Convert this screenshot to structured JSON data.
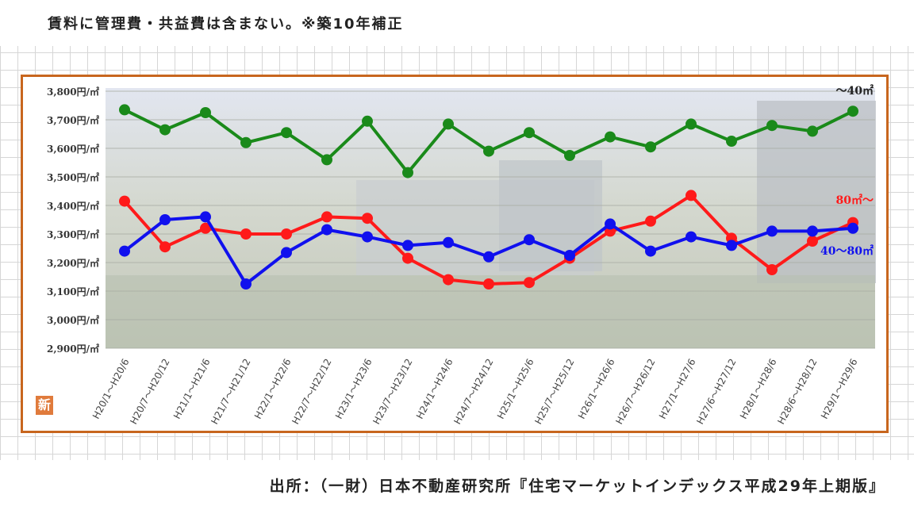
{
  "header": {
    "note": "賃料に管理費・共益費は含まない。※築10年補正"
  },
  "footer": {
    "source": "出所：（一財）日本不動産研究所『住宅マーケットインデックス平成29年上期版』"
  },
  "badge": {
    "label": "新"
  },
  "chart_data": {
    "type": "line",
    "title": "",
    "xlabel": "",
    "ylabel": "",
    "ylim": [
      2900,
      3800
    ],
    "yticks": [
      2900,
      3000,
      3100,
      3200,
      3300,
      3400,
      3500,
      3600,
      3700,
      3800
    ],
    "ytick_labels": [
      "2,900円/㎡",
      "3,000円/㎡",
      "3,100円/㎡",
      "3,200円/㎡",
      "3,300円/㎡",
      "3,400円/㎡",
      "3,500円/㎡",
      "3,600円/㎡",
      "3,700円/㎡",
      "3,800円/㎡"
    ],
    "grid": true,
    "categories": [
      "H20/1～H20/6",
      "H20/7～H20/12",
      "H21/1～H21/6",
      "H21/7～H21/12",
      "H22/1～H22/6",
      "H22/7～H22/12",
      "H23/1～H23/6",
      "H23/7～H23/12",
      "H24/1～H24/6",
      "H24/7～H24/12",
      "H25/1～H25/6",
      "H25/7～H25/12",
      "H26/1～H26/6",
      "H26/7～H26/12",
      "H27/1～H27/6",
      "H27/6～H27/12",
      "H28/1～H28/6",
      "H28/6～H28/12",
      "H29/1～H29/6"
    ],
    "series": [
      {
        "name": "～40㎡",
        "color": "#1a8a1a",
        "values": [
          3735,
          3665,
          3725,
          3620,
          3655,
          3560,
          3695,
          3515,
          3685,
          3590,
          3655,
          3575,
          3640,
          3605,
          3685,
          3625,
          3680,
          3660,
          3730
        ]
      },
      {
        "name": "80㎡～",
        "color": "#ff1a1a",
        "values": [
          3415,
          3255,
          3320,
          3300,
          3300,
          3360,
          3355,
          3215,
          3140,
          3125,
          3130,
          3215,
          3310,
          3345,
          3435,
          3285,
          3175,
          3275,
          3340
        ]
      },
      {
        "name": "40～80㎡",
        "color": "#1010ee",
        "values": [
          3240,
          3350,
          3360,
          3125,
          3235,
          3315,
          3290,
          3260,
          3270,
          3220,
          3280,
          3225,
          3335,
          3240,
          3290,
          3260,
          3310,
          3310,
          3320
        ]
      }
    ]
  }
}
